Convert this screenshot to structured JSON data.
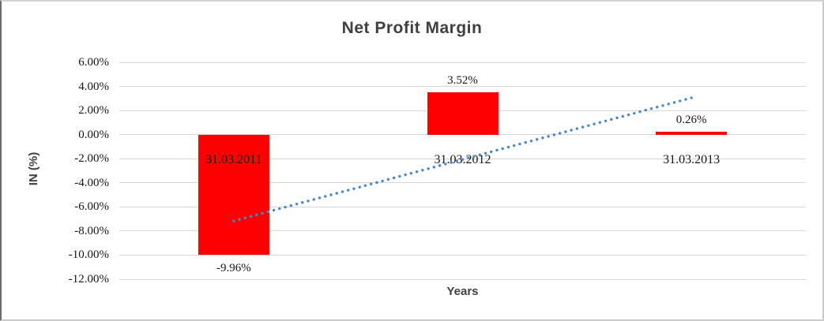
{
  "chart_data": {
    "type": "bar",
    "title": "Net Profit Margin",
    "xlabel": "Years",
    "ylabel": "IN (%)",
    "categories": [
      "31.03.2011",
      "31.03.2012",
      "31.03.2013"
    ],
    "series": [
      {
        "name": "Net Profit Margin",
        "color": "#FF0000",
        "values": [
          -9.96,
          3.52,
          0.26
        ],
        "data_labels": [
          "-9.96%",
          "3.52%",
          "0.26%"
        ]
      }
    ],
    "ylim": [
      -12,
      6
    ],
    "yticks": [
      {
        "value": 6,
        "label": "6.00%"
      },
      {
        "value": 4,
        "label": "4.00%"
      },
      {
        "value": 2,
        "label": "2.00%"
      },
      {
        "value": 0,
        "label": "0.00%"
      },
      {
        "value": -2,
        "label": "-2.00%"
      },
      {
        "value": -4,
        "label": "-4.00%"
      },
      {
        "value": -6,
        "label": "-6.00%"
      },
      {
        "value": -8,
        "label": "-8.00%"
      },
      {
        "value": -10,
        "label": "-10.00%"
      },
      {
        "value": -12,
        "label": "-12.00%"
      }
    ],
    "grid": true,
    "legend": "none",
    "trendline": {
      "type": "linear",
      "line_style": "dotted",
      "color": "#4A86C8",
      "start_value": -7.17,
      "end_value": 3.05
    },
    "colors": {
      "gridline": "#D6D6D6",
      "title_text": "#3F3F3F",
      "tick_text": "#161616"
    }
  }
}
